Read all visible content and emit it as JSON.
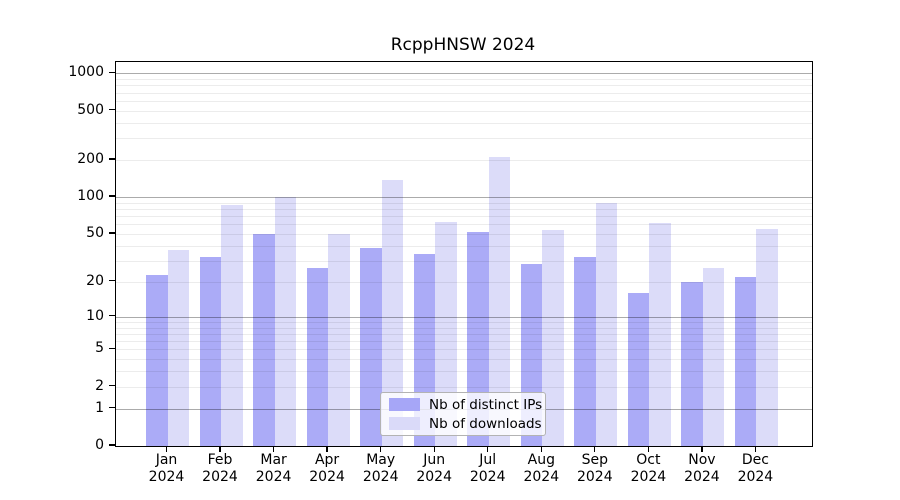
{
  "title": "RcppHNSW 2024",
  "chart_data": {
    "type": "bar",
    "title": "RcppHNSW 2024",
    "categories": [
      "Jan",
      "Feb",
      "Mar",
      "Apr",
      "May",
      "Jun",
      "Jul",
      "Aug",
      "Sep",
      "Oct",
      "Nov",
      "Dec"
    ],
    "year": "2024",
    "series": [
      {
        "key": "ips",
        "name": "Nb of distinct IPs",
        "color": "#a6a6f7",
        "values": [
          23,
          32,
          50,
          26,
          38,
          34,
          52,
          28,
          32,
          16,
          20,
          22
        ]
      },
      {
        "key": "downloads",
        "name": "Nb of downloads",
        "color": "#dadaf9",
        "values": [
          37,
          86,
          100,
          50,
          138,
          63,
          210,
          54,
          90,
          62,
          26,
          55
        ]
      }
    ],
    "y_axis": {
      "scale": "log1p",
      "ticks": [
        0,
        1,
        2,
        5,
        10,
        20,
        50,
        100,
        200,
        500,
        1000
      ],
      "ymax": 1250
    },
    "grid": {
      "major": [
        1,
        10,
        100,
        1000
      ],
      "minor": [
        2,
        3,
        4,
        5,
        6,
        7,
        8,
        9,
        20,
        30,
        40,
        50,
        60,
        70,
        80,
        90,
        200,
        300,
        400,
        500,
        600,
        700,
        800,
        900
      ]
    },
    "legend": {
      "position": "bottom-center",
      "entries": [
        "Nb of distinct IPs",
        "Nb of downloads"
      ]
    }
  },
  "colors": {
    "bar_dark": "#a6a6f7",
    "bar_light": "#dadaf9",
    "grid_major": "#b3b3b3",
    "grid_minor": "#e9e9e9",
    "axis": "#000000",
    "background": "#ffffff"
  }
}
